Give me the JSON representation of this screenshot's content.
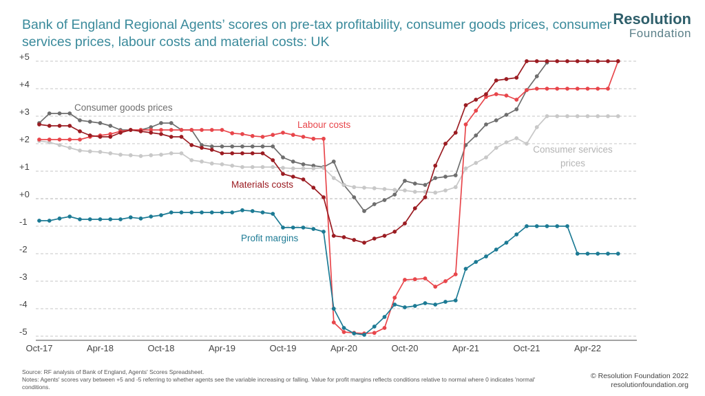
{
  "title": "Bank of England Regional Agents’ scores on pre-tax profitability, consumer goods prices, consumer services prices, labour costs and material costs: UK",
  "brand": {
    "name": "Resolution",
    "sub": "Foundation"
  },
  "source": "Source: RF analysis of Bank of England, Agents' Scores Spreadsheet.",
  "notes": "Notes: Agents' scores vary between +5 and -5 referring to whether agents see the variable increasing or falling. Value for profit margins reflects conditions relative to normal where 0 indicates 'normal' conditions.",
  "copyright": "© Resolution Foundation 2022",
  "website": "resolutionfoundation.org",
  "chart_data": {
    "type": "line",
    "x_start": "Oct-17",
    "x_count": 58,
    "x_tick_labels": [
      "Oct-17",
      "Apr-18",
      "Oct-18",
      "Apr-19",
      "Oct-19",
      "Apr-20",
      "Oct-20",
      "Apr-21",
      "Oct-21",
      "Apr-22"
    ],
    "y_tick_labels": [
      "+5",
      "+4",
      "+3",
      "+2",
      "+1",
      "+0",
      "-1",
      "-2",
      "-3",
      "-4",
      "-5"
    ],
    "ylim": [
      -5,
      5
    ],
    "grid": "horizontal-dashed",
    "series": [
      {
        "name": "Consumer goods prices",
        "color": "#6e6e6e",
        "values": [
          2.75,
          3.1,
          3.1,
          3.1,
          2.85,
          2.8,
          2.75,
          2.65,
          2.5,
          2.5,
          2.5,
          2.6,
          2.75,
          2.75,
          2.5,
          2.5,
          1.95,
          1.9,
          1.9,
          1.9,
          1.9,
          1.9,
          1.9,
          1.9,
          1.5,
          1.35,
          1.25,
          1.2,
          1.15,
          1.35,
          0.5,
          0.05,
          -0.45,
          -0.2,
          -0.05,
          0.15,
          0.65,
          0.55,
          0.5,
          0.75,
          0.8,
          0.85,
          1.95,
          2.3,
          2.7,
          2.85,
          3.05,
          3.25,
          3.95,
          4.45,
          4.95,
          null,
          null,
          null,
          null,
          null,
          null,
          null
        ]
      },
      {
        "name": "Consumer services prices",
        "color": "#c8c8c8",
        "values": [
          2.1,
          2.05,
          1.95,
          1.85,
          1.75,
          1.72,
          1.7,
          1.65,
          1.6,
          1.58,
          1.55,
          1.58,
          1.6,
          1.65,
          1.65,
          1.4,
          1.35,
          1.28,
          1.25,
          1.2,
          1.15,
          1.15,
          1.15,
          1.15,
          1.12,
          1.1,
          1.1,
          1.1,
          1.12,
          0.75,
          0.5,
          0.42,
          0.4,
          0.38,
          0.35,
          0.32,
          0.3,
          0.25,
          0.25,
          0.22,
          0.3,
          0.42,
          1.1,
          1.3,
          1.5,
          1.85,
          2.05,
          2.2,
          2.0,
          2.6,
          3.0,
          3.0,
          3.0,
          3.0,
          3.0,
          3.0,
          3.0,
          3.0
        ]
      },
      {
        "name": "Labour costs",
        "color": "#e8464b",
        "values": [
          2.15,
          2.15,
          2.15,
          2.15,
          2.15,
          2.25,
          2.3,
          2.35,
          2.45,
          2.5,
          2.5,
          2.5,
          2.5,
          2.5,
          2.5,
          2.5,
          2.5,
          2.5,
          2.5,
          2.38,
          2.35,
          2.28,
          2.25,
          2.32,
          2.4,
          2.32,
          2.25,
          2.18,
          2.18,
          -4.5,
          -4.85,
          -4.88,
          -4.9,
          -4.88,
          -4.7,
          -3.6,
          -2.95,
          -2.93,
          -2.9,
          -3.2,
          -3.0,
          -2.75,
          2.7,
          3.2,
          3.7,
          3.8,
          3.75,
          3.6,
          3.95,
          4.0,
          4.0,
          4.0,
          4.0,
          4.0,
          4.0,
          4.0,
          4.0,
          5.0
        ]
      },
      {
        "name": "Materials costs",
        "color": "#9b1c22",
        "values": [
          2.7,
          2.65,
          2.65,
          2.65,
          2.45,
          2.3,
          2.25,
          2.25,
          2.4,
          2.5,
          2.45,
          2.4,
          2.35,
          2.25,
          2.25,
          1.95,
          1.85,
          1.78,
          1.65,
          1.65,
          1.65,
          1.65,
          1.65,
          1.4,
          0.9,
          0.8,
          0.7,
          0.4,
          0.05,
          -1.35,
          -1.4,
          -1.5,
          -1.6,
          -1.45,
          -1.35,
          -1.2,
          -0.9,
          -0.35,
          0.05,
          1.2,
          2.0,
          2.4,
          3.4,
          3.6,
          3.8,
          4.3,
          4.35,
          4.4,
          5.0,
          5.0,
          5.0,
          5.0,
          5.0,
          5.0,
          5.0,
          5.0,
          5.0,
          5.0
        ]
      },
      {
        "name": "Profit margins",
        "color": "#1c7a94",
        "values": [
          -0.8,
          -0.8,
          -0.72,
          -0.65,
          -0.75,
          -0.75,
          -0.75,
          -0.75,
          -0.75,
          -0.68,
          -0.72,
          -0.65,
          -0.6,
          -0.5,
          -0.5,
          -0.5,
          -0.5,
          -0.5,
          -0.5,
          -0.5,
          -0.42,
          -0.45,
          -0.5,
          -0.55,
          -1.05,
          -1.05,
          -1.05,
          -1.1,
          -1.2,
          -4.0,
          -4.7,
          -4.9,
          -4.95,
          -4.65,
          -4.3,
          -3.85,
          -3.95,
          -3.9,
          -3.8,
          -3.85,
          -3.75,
          -3.7,
          -2.55,
          -2.3,
          -2.1,
          -1.85,
          -1.6,
          -1.3,
          -1.0,
          -1.0,
          -1.0,
          -1.0,
          -1.0,
          -2.0,
          -2.0,
          -2.0,
          -2.0,
          -2.0
        ]
      }
    ]
  }
}
